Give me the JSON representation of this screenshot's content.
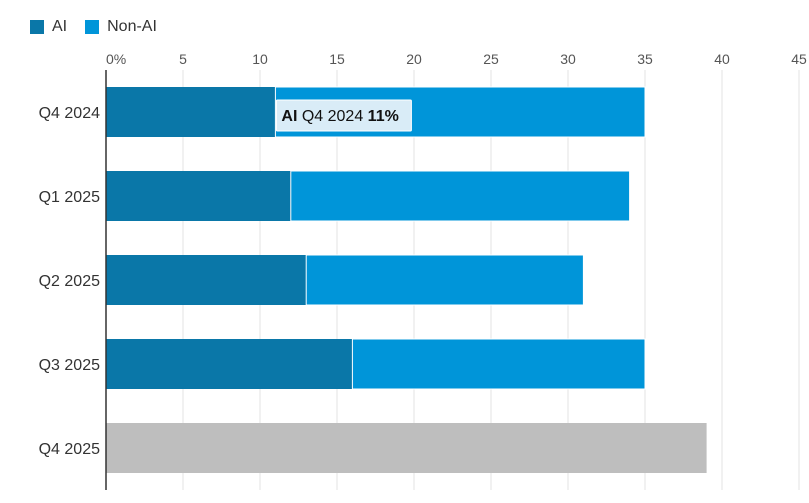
{
  "chart_data": {
    "type": "bar",
    "orientation": "horizontal",
    "stacked": true,
    "categories": [
      "Q4 2024",
      "Q1 2025",
      "Q2 2025",
      "Q3 2025",
      "Q4 2025"
    ],
    "series": [
      {
        "name": "AI",
        "color": "#0a77a8",
        "values": [
          11,
          12,
          13,
          16,
          null
        ]
      },
      {
        "name": "Non-AI",
        "color": "#0095d9",
        "values": [
          24,
          22,
          18,
          19,
          null
        ]
      }
    ],
    "total_only": {
      "category": "Q4 2025",
      "value": 39,
      "color": "#bebebe"
    },
    "x_ticks": [
      "0%",
      "5",
      "10",
      "15",
      "20",
      "25",
      "30",
      "35",
      "40",
      "45"
    ],
    "xlim": [
      0,
      45
    ],
    "grid": true,
    "legend_position": "top-left",
    "tooltip": {
      "series": "AI",
      "category": "Q4 2024",
      "value": "11%"
    }
  }
}
